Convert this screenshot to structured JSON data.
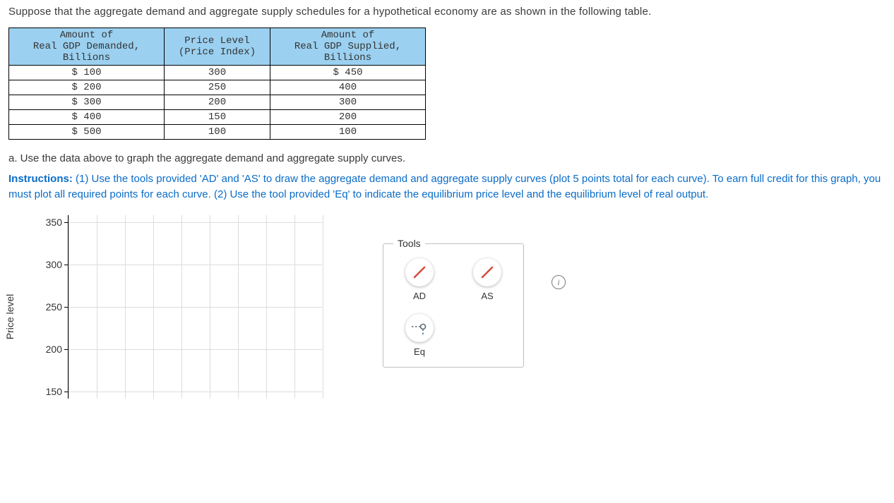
{
  "intro": "Suppose that the aggregate demand and aggregate supply schedules for a hypothetical economy are as shown in the following table.",
  "table": {
    "header": {
      "col1_l1": "Amount of",
      "col1_l2": "Real GDP Demanded,",
      "col1_l3": "Billions",
      "col2_l1": "Price Level",
      "col2_l2": "(Price Index)",
      "col3_l1": "Amount of",
      "col3_l2": "Real GDP Supplied,",
      "col3_l3": "Billions"
    },
    "rows": [
      {
        "demanded": "$ 100",
        "price": "300",
        "supplied": "$ 450"
      },
      {
        "demanded": "$ 200",
        "price": "250",
        "supplied": "400"
      },
      {
        "demanded": "$ 300",
        "price": "200",
        "supplied": "300"
      },
      {
        "demanded": "$ 400",
        "price": "150",
        "supplied": "200"
      },
      {
        "demanded": "$ 500",
        "price": "100",
        "supplied": "100"
      }
    ],
    "header_bg": "#9bd0f0"
  },
  "qa": "a. Use the data above to graph the aggregate demand and aggregate supply curves.",
  "instructions": {
    "lead": "Instructions:",
    "body": " (1) Use the tools provided 'AD' and 'AS' to draw the aggregate demand and aggregate supply curves (plot 5 points total for each curve). To earn full credit for this graph, you must plot all required points for each curve. (2) Use the tool provided 'Eq' to indicate the equilibrium price level and the equilibrium level of real output."
  },
  "chart": {
    "type": "scatter-line-blank",
    "ylabel": "Price level",
    "ylim_visible": [
      150,
      350
    ],
    "yticks": [
      350,
      300,
      250,
      200,
      150
    ],
    "ytick_step": 50,
    "xgrid_count": 9,
    "ygrid_count": 5,
    "grid_color": "#dcdcdc",
    "axis_color": "#000000",
    "background_color": "#ffffff",
    "tick_fontsize": 14,
    "label_fontsize": 14
  },
  "tools": {
    "title": "Tools",
    "items": [
      {
        "id": "AD",
        "label": "AD",
        "kind": "line",
        "color": "#d64a3a"
      },
      {
        "id": "AS",
        "label": "AS",
        "kind": "line",
        "color": "#d64a3a"
      },
      {
        "id": "Eq",
        "label": "Eq",
        "kind": "eq-marker",
        "color": "#5d6b74"
      }
    ]
  },
  "info_icon": "i"
}
